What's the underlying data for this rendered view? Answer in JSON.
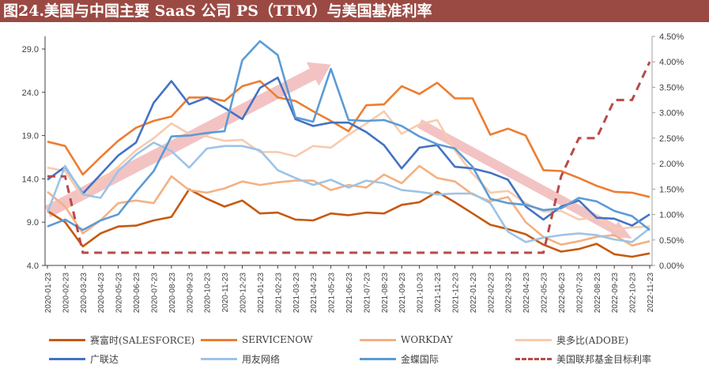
{
  "title": "图24.美国与中国主要 SaaS 公司 PS（TTM）与美国基准利率",
  "chart_data": {
    "type": "line",
    "title": "图24.美国与中国主要 SaaS 公司 PS（TTM）与美国基准利率",
    "x": [
      "2020-01-23",
      "2020-02-23",
      "2020-03-23",
      "2020-04-23",
      "2020-05-23",
      "2020-06-23",
      "2020-07-23",
      "2020-08-23",
      "2020-09-23",
      "2020-10-23",
      "2020-11-23",
      "2020-12-23",
      "2021-01-23",
      "2021-02-23",
      "2021-03-23",
      "2021-04-23",
      "2021-05-23",
      "2021-06-23",
      "2021-07-23",
      "2021-08-23",
      "2021-09-23",
      "2021-10-23",
      "2021-11-23",
      "2021-12-23",
      "2022-01-23",
      "2022-02-23",
      "2022-03-23",
      "2022-04-23",
      "2022-05-23",
      "2022-06-23",
      "2022-07-23",
      "2022-08-23",
      "2022-09-23",
      "2022-10-23",
      "2022-11-23"
    ],
    "y_left": {
      "ticks": [
        "4.0",
        "9.0",
        "14.0",
        "19.0",
        "24.0",
        "29.0"
      ],
      "range": [
        4,
        31
      ]
    },
    "y_right": {
      "ticks": [
        "0.00%",
        "0.50%",
        "1.00%",
        "1.50%",
        "2.00%",
        "2.50%",
        "3.00%",
        "3.50%",
        "4.00%",
        "4.50%"
      ],
      "range": [
        0,
        4.5
      ]
    },
    "grid": false,
    "legend_position": "bottom",
    "series": [
      {
        "name": "赛富时(SALESFORCE)",
        "color": "#c55a11",
        "axis": "left",
        "dash": false,
        "values": [
          10.3,
          9.0,
          6.2,
          7.7,
          8.5,
          8.6,
          9.2,
          9.6,
          12.8,
          11.7,
          10.8,
          11.5,
          10.0,
          10.1,
          9.3,
          9.2,
          10.0,
          9.8,
          10.1,
          10.0,
          11.0,
          11.3,
          12.5,
          11.3,
          10.0,
          8.7,
          8.2,
          7.6,
          6.4,
          5.6,
          5.9,
          6.5,
          5.3,
          5.0,
          5.4
        ]
      },
      {
        "name": "SERVICENOW",
        "color": "#ed7d31",
        "axis": "left",
        "dash": false,
        "values": [
          18.3,
          17.8,
          14.5,
          16.5,
          18.4,
          19.9,
          20.7,
          21.2,
          23.4,
          23.4,
          23.0,
          24.7,
          25.3,
          23.4,
          23.0,
          21.8,
          20.7,
          19.5,
          22.5,
          22.6,
          24.7,
          23.8,
          25.1,
          23.3,
          23.3,
          19.1,
          19.8,
          19.0,
          15.0,
          14.9,
          14.1,
          13.2,
          12.5,
          12.4,
          11.9
        ]
      },
      {
        "name": "WORKDAY",
        "color": "#f4b183",
        "axis": "left",
        "dash": false,
        "values": [
          12.5,
          10.8,
          7.7,
          9.2,
          11.2,
          11.5,
          11.2,
          14.3,
          12.7,
          12.4,
          12.9,
          13.7,
          13.3,
          13.6,
          13.8,
          13.8,
          12.7,
          13.3,
          13.0,
          14.5,
          13.5,
          15.5,
          14.1,
          13.7,
          12.2,
          11.4,
          11.9,
          9.0,
          7.3,
          6.4,
          6.8,
          7.3,
          7.5,
          6.3,
          6.8
        ]
      },
      {
        "name": "奥多比(ADOBE)",
        "color": "#f8cbad",
        "axis": "left",
        "dash": false,
        "values": [
          15.3,
          14.9,
          11.8,
          13.8,
          15.4,
          17.3,
          18.7,
          20.4,
          19.2,
          18.9,
          18.4,
          18.5,
          17.1,
          17.1,
          16.6,
          17.8,
          17.6,
          19.1,
          20.4,
          21.8,
          19.2,
          20.3,
          20.8,
          17.3,
          14.6,
          12.4,
          12.6,
          11.2,
          10.2,
          10.3,
          9.3,
          9.6,
          8.2,
          8.4,
          8.5
        ]
      },
      {
        "name": "广联达",
        "color": "#4472c4",
        "axis": "left",
        "dash": false,
        "values": [
          13.9,
          15.4,
          12.3,
          14.5,
          16.7,
          18.2,
          22.8,
          25.3,
          22.6,
          23.4,
          22.2,
          20.9,
          24.5,
          25.7,
          20.9,
          20.1,
          20.5,
          20.5,
          19.4,
          17.9,
          15.2,
          17.6,
          17.9,
          15.4,
          15.2,
          14.7,
          13.9,
          10.8,
          9.3,
          10.8,
          11.5,
          9.5,
          9.4,
          8.6,
          9.9
        ]
      },
      {
        "name": "用友网络",
        "color": "#9dc3e6",
        "axis": "left",
        "dash": false,
        "values": [
          10.1,
          15.5,
          12.2,
          11.8,
          14.9,
          16.8,
          18.2,
          17.2,
          15.3,
          17.5,
          17.8,
          17.8,
          17.3,
          15.0,
          14.1,
          13.3,
          13.9,
          13.0,
          13.8,
          13.5,
          12.7,
          12.5,
          12.2,
          12.3,
          12.3,
          11.2,
          7.9,
          6.7,
          7.2,
          7.5,
          7.7,
          7.5,
          7.0,
          6.7,
          8.3
        ]
      },
      {
        "name": "金蝶国际",
        "color": "#5b9bd5",
        "axis": "left",
        "dash": false,
        "values": [
          8.5,
          9.3,
          8.1,
          9.2,
          9.9,
          12.5,
          14.9,
          18.9,
          19.0,
          19.3,
          19.5,
          27.7,
          29.9,
          28.3,
          21.1,
          20.6,
          26.7,
          20.8,
          20.7,
          20.8,
          20.1,
          18.9,
          18.0,
          17.5,
          15.4,
          11.7,
          11.2,
          11.0,
          10.4,
          10.6,
          11.8,
          11.4,
          10.3,
          9.7,
          8.1
        ]
      },
      {
        "name": "美国联邦基金目标利率",
        "color": "#b84a48",
        "axis": "right",
        "dash": true,
        "values": [
          1.75,
          1.75,
          0.25,
          0.25,
          0.25,
          0.25,
          0.25,
          0.25,
          0.25,
          0.25,
          0.25,
          0.25,
          0.25,
          0.25,
          0.25,
          0.25,
          0.25,
          0.25,
          0.25,
          0.25,
          0.25,
          0.25,
          0.25,
          0.25,
          0.25,
          0.25,
          0.25,
          0.25,
          0.25,
          1.75,
          2.5,
          2.5,
          3.25,
          3.25,
          4.0
        ]
      }
    ],
    "annotations": [
      {
        "type": "arrow",
        "direction": "up",
        "color": "#f2bcbc",
        "from_x": "2020-01-23",
        "from_y": 10.2,
        "to_x": "2021-05-23",
        "to_y": 27.2
      },
      {
        "type": "arrow",
        "direction": "down",
        "color": "#f2bcbc",
        "from_x": "2021-10-23",
        "from_y": 20.4,
        "to_x": "2022-10-23",
        "to_y": 7.1
      }
    ]
  }
}
